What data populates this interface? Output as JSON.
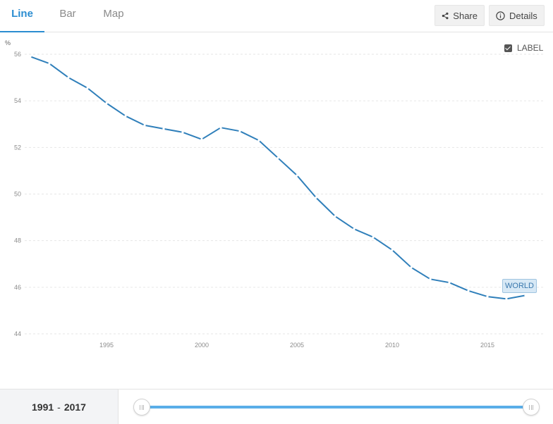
{
  "tabs": [
    {
      "label": "Line",
      "active": true
    },
    {
      "label": "Bar",
      "active": false
    },
    {
      "label": "Map",
      "active": false
    }
  ],
  "actions": {
    "share_label": "Share",
    "details_label": "Details"
  },
  "legend": {
    "checkbox_label": "LABEL",
    "checked": true
  },
  "range": {
    "start": "1991",
    "separator": "-",
    "end": "2017"
  },
  "colors": {
    "accent": "#2b8dd1",
    "series_line": "#2f7fba",
    "slider_track": "#5aaee8"
  },
  "chart_data": {
    "type": "line",
    "unit_label": "%",
    "x": [
      1991,
      1992,
      1993,
      1994,
      1995,
      1996,
      1997,
      1998,
      1999,
      2000,
      2001,
      2002,
      2003,
      2004,
      2005,
      2006,
      2007,
      2008,
      2009,
      2010,
      2011,
      2012,
      2013,
      2014,
      2015,
      2016,
      2017
    ],
    "series": [
      {
        "name": "WORLD",
        "values": [
          55.9,
          55.6,
          55.0,
          54.55,
          53.9,
          53.35,
          52.95,
          52.8,
          52.65,
          52.35,
          52.85,
          52.7,
          52.3,
          51.55,
          50.8,
          49.85,
          49.05,
          48.5,
          48.15,
          47.6,
          46.85,
          46.35,
          46.2,
          45.85,
          45.6,
          45.5,
          45.65
        ]
      }
    ],
    "yticks": [
      44,
      46,
      48,
      50,
      52,
      54,
      56
    ],
    "xticks": [
      1995,
      2000,
      2005,
      2010,
      2015
    ],
    "ylim": [
      44,
      56
    ],
    "xlim": [
      1991,
      2017
    ],
    "grid": "horizontal-dashed"
  }
}
